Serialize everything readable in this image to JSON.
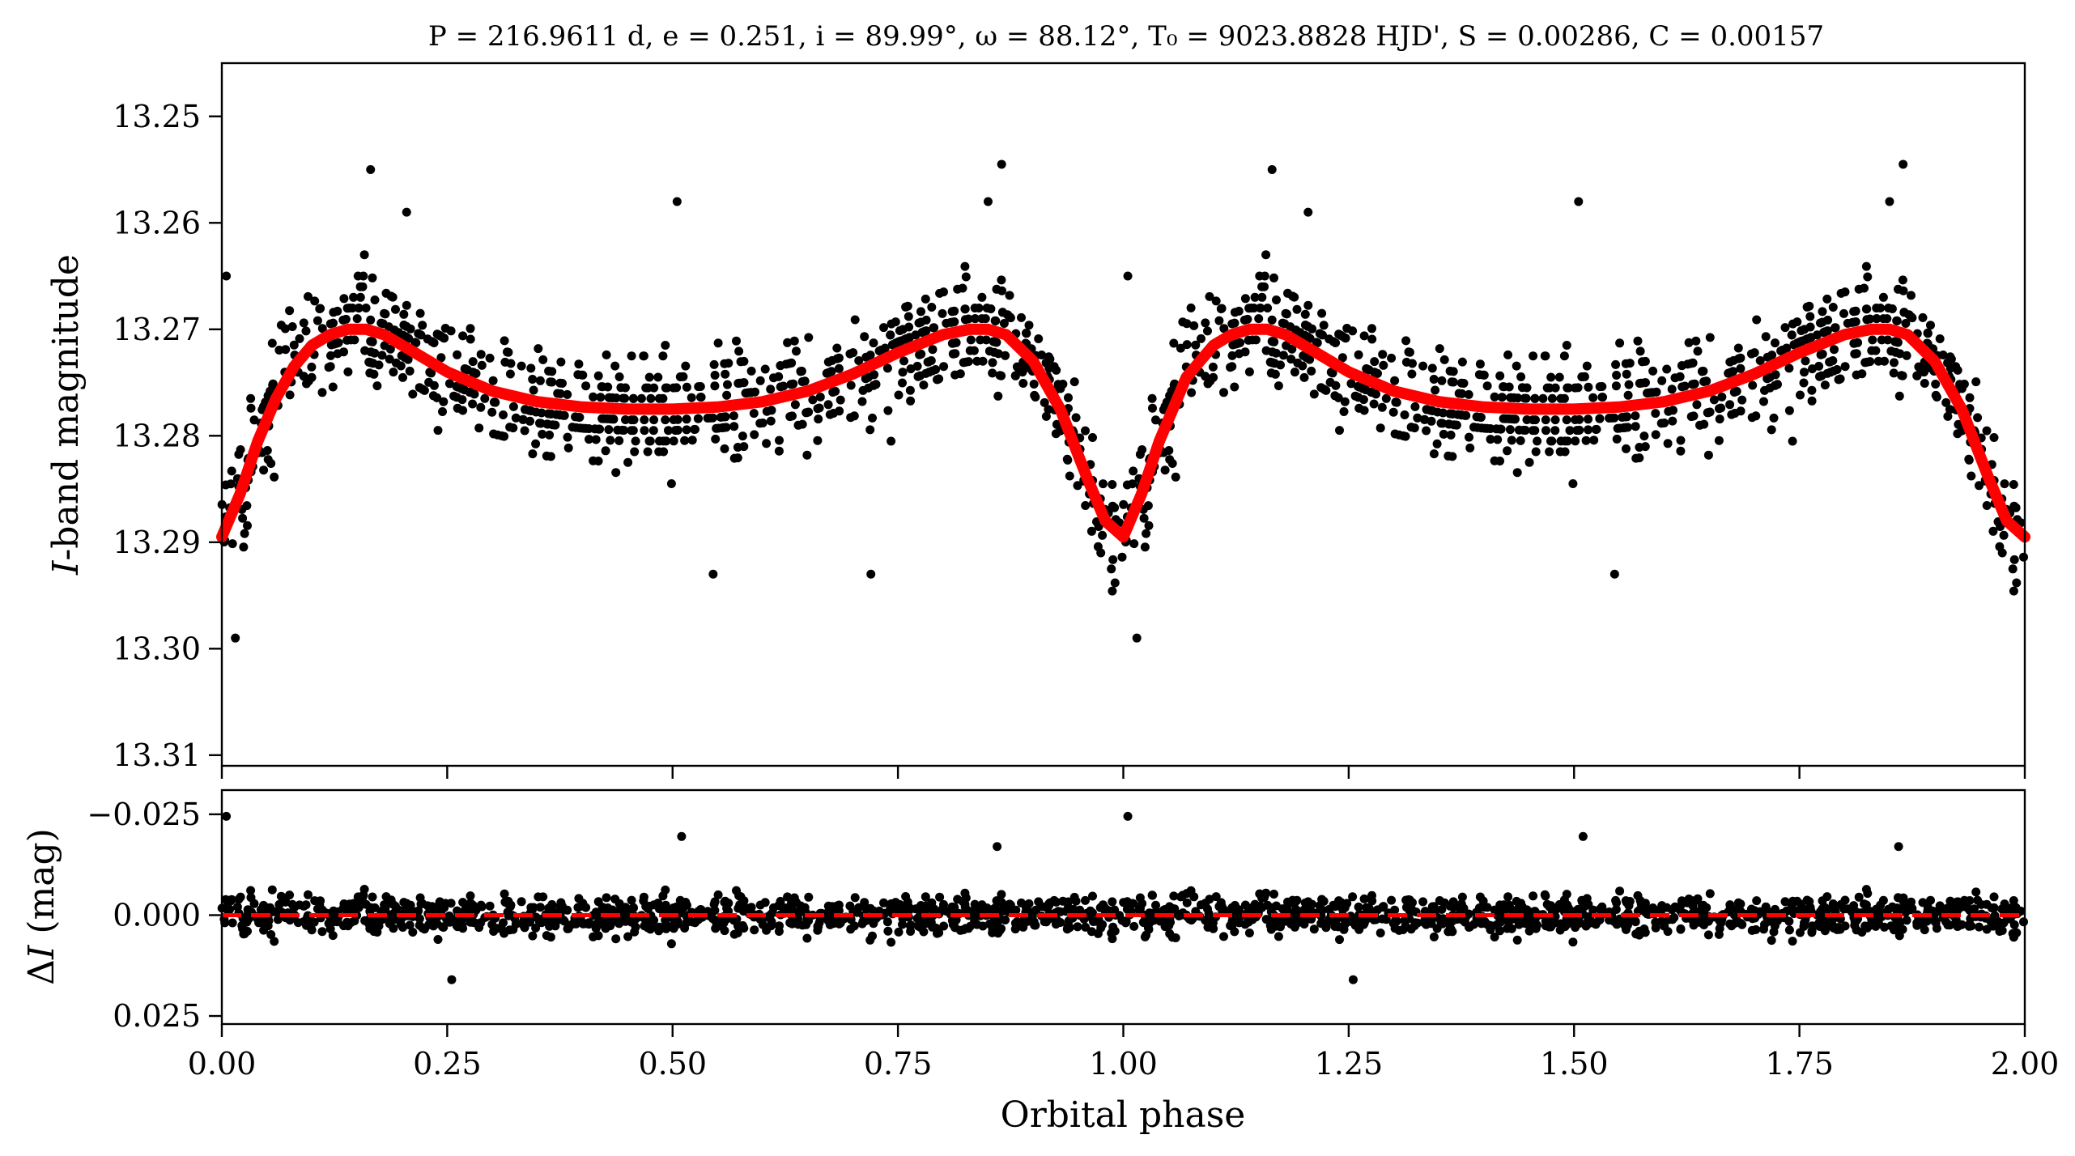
{
  "figure": {
    "title": "P = 216.9611 d, e = 0.251, i = 89.99°, ω = 88.12°, T₀ = 9023.8828 HJD', S = 0.00286, C = 0.00157",
    "colors": {
      "points": "#000000",
      "model": "#ff0000",
      "zero_line": "#ff0000",
      "axes": "#000000",
      "background": "#ffffff"
    }
  },
  "chart_data": [
    {
      "type": "scatter",
      "panel": "light-curve",
      "title": "P = 216.9611 d, e = 0.251, i = 89.99°, ω = 88.12°, T₀ = 9023.8828 HJD', S = 0.00286, C = 0.00157",
      "xlabel": "",
      "ylabel": "I-band magnitude",
      "xlim": [
        0.0,
        2.0
      ],
      "ylim": [
        13.311,
        13.245
      ],
      "y_inverted": true,
      "y_ticks": [
        13.25,
        13.26,
        13.27,
        13.28,
        13.29,
        13.3,
        13.31
      ],
      "y_tick_labels": [
        "13.25",
        "13.26",
        "13.27",
        "13.28",
        "13.29",
        "13.30",
        "13.31"
      ],
      "x_ticks": [
        0.0,
        0.25,
        0.5,
        0.75,
        1.0,
        1.25,
        1.5,
        1.75,
        2.0
      ],
      "x_tick_labels": [
        "",
        "",
        "",
        "",
        "",
        "",
        "",
        "",
        ""
      ],
      "grid": false,
      "series": [
        {
          "kind": "model-curve",
          "color": "#ff0000",
          "x": [
            0.0,
            0.02,
            0.04,
            0.06,
            0.08,
            0.1,
            0.12,
            0.14,
            0.16,
            0.18,
            0.2,
            0.25,
            0.3,
            0.35,
            0.4,
            0.45,
            0.5,
            0.55,
            0.6,
            0.65,
            0.7,
            0.75,
            0.8,
            0.83,
            0.85,
            0.87,
            0.9,
            0.93,
            0.96,
            0.98,
            1.0,
            1.02,
            1.04,
            1.07,
            1.1,
            1.12,
            1.14,
            1.16,
            1.18,
            1.2,
            1.25,
            1.3,
            1.35,
            1.4,
            1.45,
            1.5,
            1.55,
            1.6,
            1.65,
            1.7,
            1.75,
            1.8,
            1.83,
            1.85,
            1.87,
            1.9,
            1.93,
            1.96,
            1.98,
            2.0
          ],
          "y": [
            13.2895,
            13.2855,
            13.2805,
            13.2765,
            13.2735,
            13.2715,
            13.2705,
            13.27,
            13.27,
            13.2705,
            13.2715,
            13.274,
            13.2758,
            13.2768,
            13.2773,
            13.2775,
            13.2775,
            13.2773,
            13.2768,
            13.2758,
            13.2742,
            13.2722,
            13.2705,
            13.27,
            13.27,
            13.2705,
            13.273,
            13.2775,
            13.284,
            13.288,
            13.2895,
            13.2855,
            13.2805,
            13.2745,
            13.2715,
            13.2705,
            13.27,
            13.27,
            13.2705,
            13.2715,
            13.274,
            13.2758,
            13.2768,
            13.2773,
            13.2775,
            13.2775,
            13.2773,
            13.2768,
            13.2758,
            13.2742,
            13.2722,
            13.2705,
            13.27,
            13.27,
            13.2705,
            13.273,
            13.2775,
            13.284,
            13.288,
            13.2895
          ]
        },
        {
          "kind": "observations",
          "color": "#000000",
          "note_points": "phase-folded observations; approximate scatter about the model, std ≈ 0.0045 mag",
          "scatter_std": 0.0045,
          "count_per_unit_phase": 900,
          "outliers": [
            {
              "x": 0.005,
              "y": 13.265
            },
            {
              "x": 0.015,
              "y": 13.299
            },
            {
              "x": 0.165,
              "y": 13.255
            },
            {
              "x": 0.205,
              "y": 13.259
            },
            {
              "x": 0.505,
              "y": 13.258
            },
            {
              "x": 0.545,
              "y": 13.293
            },
            {
              "x": 0.72,
              "y": 13.293
            },
            {
              "x": 0.85,
              "y": 13.258
            },
            {
              "x": 0.865,
              "y": 13.2545
            },
            {
              "x": 1.005,
              "y": 13.265
            },
            {
              "x": 1.015,
              "y": 13.299
            },
            {
              "x": 1.165,
              "y": 13.255
            },
            {
              "x": 1.205,
              "y": 13.259
            },
            {
              "x": 1.505,
              "y": 13.258
            },
            {
              "x": 1.545,
              "y": 13.293
            },
            {
              "x": 1.85,
              "y": 13.258
            },
            {
              "x": 1.865,
              "y": 13.2545
            }
          ]
        }
      ]
    },
    {
      "type": "scatter",
      "panel": "residuals",
      "title": "",
      "xlabel": "Orbital phase",
      "ylabel": "ΔI (mag)",
      "xlim": [
        0.0,
        2.0
      ],
      "ylim": [
        0.027,
        -0.031
      ],
      "y_inverted": true,
      "y_ticks": [
        -0.025,
        0.0,
        0.025
      ],
      "y_tick_labels": [
        "−0.025",
        "0.000",
        "0.025"
      ],
      "x_ticks": [
        0.0,
        0.25,
        0.5,
        0.75,
        1.0,
        1.25,
        1.5,
        1.75,
        2.0
      ],
      "x_tick_labels": [
        "0.00",
        "0.25",
        "0.50",
        "0.75",
        "1.00",
        "1.25",
        "1.50",
        "1.75",
        "2.00"
      ],
      "grid": false,
      "series": [
        {
          "kind": "zero-line",
          "style": "dashed",
          "color": "#ff0000",
          "y": 0.0
        },
        {
          "kind": "residuals",
          "color": "#000000",
          "scatter_std": 0.0045,
          "count_per_unit_phase": 900,
          "outliers": [
            {
              "x": 0.005,
              "y": -0.0245
            },
            {
              "x": 0.255,
              "y": 0.016
            },
            {
              "x": 0.51,
              "y": -0.0195
            },
            {
              "x": 0.86,
              "y": -0.017
            },
            {
              "x": 1.005,
              "y": -0.0245
            },
            {
              "x": 1.255,
              "y": 0.016
            },
            {
              "x": 1.51,
              "y": -0.0195
            },
            {
              "x": 1.86,
              "y": -0.017
            }
          ]
        }
      ]
    }
  ]
}
